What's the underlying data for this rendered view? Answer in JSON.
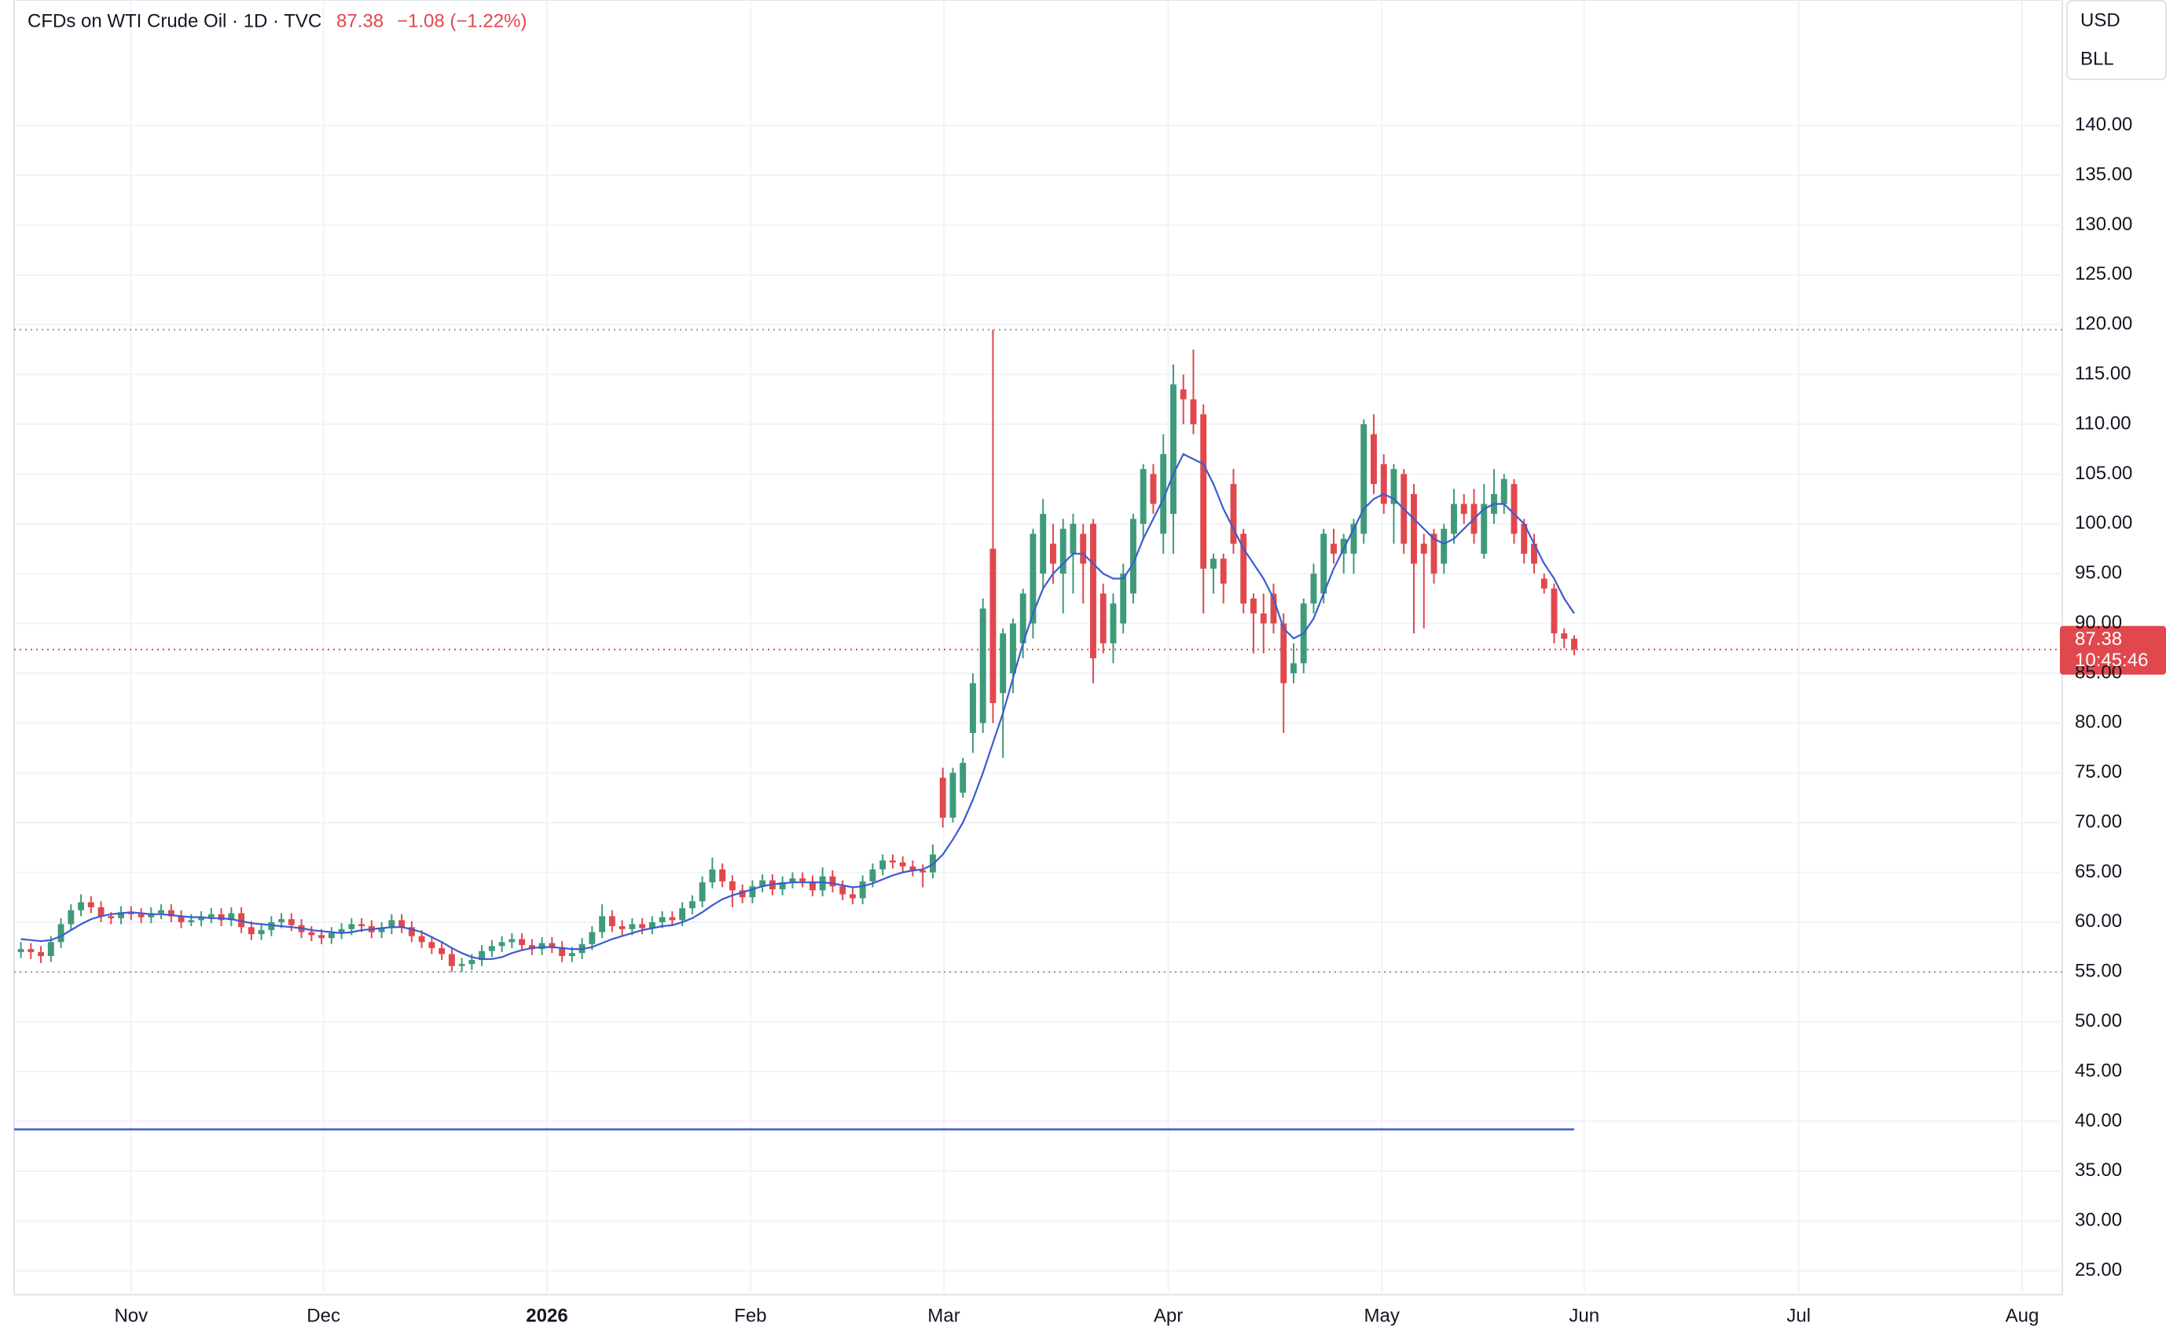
{
  "header": {
    "title": "CFDs on WTI Crude Oil · 1D · TVC",
    "change": "−1.08 (−1.22%)",
    "currency": "USD",
    "unit": "BLL",
    "countdown": "10:45:46"
  },
  "chart_data": {
    "type": "candlestick",
    "up_color": "#3f9a7a",
    "down_color": "#e0484d",
    "ma_color": "#3b5bd1",
    "hline": 39.2,
    "hline_color": "#3b5bd1",
    "grid": true,
    "xlim": [
      -0.67,
      203.7
    ],
    "xticks": [
      {
        "value": 11.0,
        "label": "Nov"
      },
      {
        "value": 30.2,
        "label": "Dec"
      },
      {
        "value": 52.5,
        "label": "2026"
      },
      {
        "value": 72.8,
        "label": "Feb"
      },
      {
        "value": 92.1,
        "label": "Mar"
      },
      {
        "value": 114.5,
        "label": "Apr"
      },
      {
        "value": 135.8,
        "label": "May"
      },
      {
        "value": 156.0,
        "label": "Jun"
      },
      {
        "value": 177.4,
        "label": "Jul"
      },
      {
        "value": 199.7,
        "label": "Aug"
      }
    ],
    "ylim": [
      22.6,
      152.6
    ],
    "yticks": [
      {
        "value": 25,
        "label": "25.00"
      },
      {
        "value": 30,
        "label": "30.00"
      },
      {
        "value": 35,
        "label": "35.00"
      },
      {
        "value": 40,
        "label": "40.00"
      },
      {
        "value": 45,
        "label": "45.00"
      },
      {
        "value": 50,
        "label": "50.00"
      },
      {
        "value": 55,
        "label": "55.00"
      },
      {
        "value": 60,
        "label": "60.00"
      },
      {
        "value": 65,
        "label": "65.00"
      },
      {
        "value": 70,
        "label": "70.00"
      },
      {
        "value": 75,
        "label": "75.00"
      },
      {
        "value": 80,
        "label": "80.00"
      },
      {
        "value": 85,
        "label": "85.00"
      },
      {
        "value": 90,
        "label": "90.00"
      },
      {
        "value": 95,
        "label": "95.00"
      },
      {
        "value": 100,
        "label": "100.00"
      },
      {
        "value": 105,
        "label": "105.00"
      },
      {
        "value": 110,
        "label": "110.00"
      },
      {
        "value": 115,
        "label": "115.00"
      },
      {
        "value": 120,
        "label": "120.00"
      },
      {
        "value": 125,
        "label": "125.00"
      },
      {
        "value": 130,
        "label": "130.00"
      },
      {
        "value": 135,
        "label": "135.00"
      },
      {
        "value": 140,
        "label": "140.00"
      }
    ],
    "open": [
      57.0,
      57.3,
      57.0,
      56.6,
      58.0,
      59.8,
      61.2,
      62.0,
      61.5,
      60.6,
      60.4,
      61.0,
      60.8,
      60.5,
      60.9,
      61.2,
      60.6,
      60.0,
      60.2,
      60.5,
      60.8,
      60.2,
      60.9,
      59.5,
      58.8,
      59.2,
      60.0,
      60.3,
      59.7,
      59.0,
      58.7,
      58.4,
      58.9,
      59.3,
      59.8,
      59.6,
      59.0,
      59.4,
      60.2,
      59.5,
      58.6,
      58.0,
      57.4,
      56.8,
      55.6,
      55.8,
      56.2,
      57.1,
      57.6,
      58.0,
      58.3,
      57.7,
      57.3,
      57.9,
      57.5,
      56.6,
      56.9,
      57.8,
      59.0,
      60.6,
      59.6,
      59.3,
      59.8,
      59.4,
      60.0,
      60.5,
      60.2,
      61.4,
      62.1,
      64.0,
      65.3,
      64.1,
      63.2,
      62.5,
      63.6,
      64.2,
      63.3,
      64.0,
      64.4,
      64.1,
      63.2,
      64.6,
      63.6,
      62.8,
      62.4,
      64.1,
      65.3,
      66.2,
      66.0,
      65.6,
      65.2,
      65.0,
      74.5,
      70.5,
      73.0,
      79.0,
      80.0,
      97.5,
      83.0,
      85.0,
      88.0,
      90.0,
      95.0,
      98.0,
      95.0,
      97.0,
      99.0,
      100.0,
      93.0,
      88.0,
      90.0,
      93.0,
      100.0,
      105.0,
      99.0,
      101.0,
      113.5,
      112.5,
      111.0,
      95.5,
      96.5,
      104.0,
      99.0,
      92.5,
      91.0,
      93.0,
      90.0,
      85.0,
      86.0,
      92.0,
      93.0,
      98.0,
      97.0,
      97.0,
      99.0,
      109.0,
      106.0,
      102.0,
      105.0,
      103.0,
      98.0,
      99.0,
      96.0,
      99.0,
      102.0,
      102.0,
      97.0,
      101.0,
      102.0,
      104.0,
      100.0,
      98.0,
      94.5,
      93.5,
      89.0,
      88.46
    ],
    "high": [
      58.0,
      57.9,
      57.6,
      58.6,
      60.4,
      61.8,
      62.8,
      62.6,
      62.1,
      61.0,
      61.6,
      61.6,
      61.4,
      61.5,
      61.8,
      61.8,
      61.2,
      60.8,
      61.1,
      61.4,
      61.4,
      61.5,
      61.5,
      60.1,
      59.8,
      60.6,
      60.9,
      60.9,
      60.3,
      59.6,
      59.3,
      59.5,
      59.9,
      60.4,
      60.4,
      60.2,
      60.0,
      60.8,
      60.8,
      60.1,
      59.2,
      58.6,
      58.0,
      57.4,
      56.4,
      56.8,
      57.7,
      58.2,
      58.6,
      58.9,
      58.9,
      58.3,
      58.5,
      58.5,
      58.1,
      57.5,
      58.4,
      59.6,
      61.8,
      61.2,
      60.2,
      60.4,
      60.4,
      60.6,
      61.1,
      61.1,
      62.0,
      62.7,
      64.6,
      66.5,
      65.9,
      64.7,
      63.8,
      64.2,
      64.8,
      64.8,
      64.6,
      65.0,
      65.0,
      64.7,
      65.5,
      65.2,
      64.2,
      63.4,
      64.7,
      65.9,
      66.8,
      66.8,
      66.6,
      66.2,
      65.8,
      67.8,
      75.5,
      75.5,
      76.5,
      85.0,
      92.5,
      119.5,
      89.5,
      90.5,
      93.5,
      99.5,
      102.5,
      100.0,
      100.5,
      101.0,
      100.0,
      100.5,
      94.0,
      93.0,
      96.0,
      101.0,
      106.0,
      106.0,
      109.0,
      116.0,
      115.0,
      117.5,
      112.0,
      97.0,
      97.0,
      105.5,
      99.5,
      93.0,
      93.0,
      94.0,
      91.0,
      88.0,
      92.5,
      96.0,
      99.5,
      99.5,
      99.0,
      100.5,
      110.5,
      111.0,
      107.0,
      106.0,
      105.5,
      104.0,
      99.0,
      99.5,
      100.0,
      103.5,
      103.0,
      103.5,
      104.0,
      105.5,
      105.0,
      104.5,
      100.5,
      99.0,
      95.0,
      94.0,
      89.5,
      88.8
    ],
    "low": [
      56.4,
      56.3,
      55.9,
      56.0,
      57.4,
      59.2,
      60.6,
      60.9,
      60.0,
      59.8,
      59.8,
      60.2,
      59.9,
      59.9,
      60.3,
      60.0,
      59.4,
      59.6,
      59.6,
      59.9,
      59.6,
      59.6,
      58.9,
      58.2,
      58.2,
      58.6,
      59.4,
      59.1,
      58.4,
      58.1,
      57.8,
      57.8,
      58.3,
      58.7,
      59.0,
      58.4,
      58.4,
      58.8,
      58.9,
      58.0,
      57.4,
      56.8,
      56.2,
      55.0,
      55.0,
      55.2,
      55.6,
      56.5,
      57.0,
      57.4,
      57.1,
      56.7,
      56.7,
      56.9,
      56.0,
      56.0,
      56.3,
      57.2,
      58.4,
      59.0,
      58.7,
      58.7,
      58.8,
      58.8,
      59.4,
      59.6,
      59.6,
      60.8,
      61.5,
      63.4,
      63.5,
      61.5,
      61.9,
      61.9,
      63.0,
      62.7,
      62.7,
      63.4,
      63.5,
      62.6,
      62.6,
      63.0,
      62.2,
      61.8,
      61.8,
      63.5,
      64.7,
      65.4,
      65.0,
      64.6,
      63.5,
      64.4,
      69.5,
      70.0,
      72.5,
      77.0,
      79.0,
      80.0,
      76.5,
      83.0,
      86.5,
      88.5,
      93.5,
      94.0,
      91.0,
      93.0,
      92.0,
      84.0,
      87.0,
      86.0,
      89.0,
      92.0,
      98.5,
      101.0,
      97.0,
      97.0,
      110.0,
      109.0,
      91.0,
      93.0,
      92.0,
      97.0,
      91.0,
      87.0,
      87.0,
      89.0,
      79.0,
      84.0,
      85.0,
      91.0,
      92.0,
      96.0,
      95.0,
      95.0,
      98.0,
      103.0,
      101.0,
      98.0,
      97.0,
      89.0,
      89.5,
      94.0,
      95.0,
      98.0,
      100.0,
      98.0,
      96.5,
      100.0,
      101.0,
      98.0,
      96.0,
      95.0,
      93.0,
      88.0,
      87.5,
      86.8
    ],
    "close": [
      57.3,
      57.0,
      56.6,
      58.0,
      59.8,
      61.2,
      62.0,
      61.5,
      60.6,
      60.4,
      61.0,
      60.8,
      60.5,
      60.9,
      61.2,
      60.6,
      60.0,
      60.2,
      60.5,
      60.8,
      60.2,
      60.9,
      59.5,
      58.8,
      59.2,
      60.0,
      60.3,
      59.7,
      59.0,
      58.7,
      58.4,
      58.9,
      59.3,
      59.8,
      59.6,
      59.0,
      59.4,
      60.2,
      59.5,
      58.6,
      58.0,
      57.4,
      56.8,
      55.6,
      55.8,
      56.2,
      57.1,
      57.6,
      58.0,
      58.3,
      57.7,
      57.3,
      57.9,
      57.5,
      56.6,
      56.9,
      57.8,
      59.0,
      60.6,
      59.6,
      59.3,
      59.8,
      59.4,
      60.0,
      60.5,
      60.2,
      61.4,
      62.1,
      64.0,
      65.3,
      64.1,
      63.2,
      62.5,
      63.6,
      64.2,
      63.3,
      64.0,
      64.4,
      64.1,
      63.2,
      64.6,
      63.6,
      62.8,
      62.4,
      64.1,
      65.3,
      66.2,
      66.0,
      65.6,
      65.2,
      65.0,
      66.8,
      70.5,
      75.0,
      76.0,
      84.0,
      91.5,
      82.0,
      89.0,
      90.0,
      93.0,
      99.0,
      101.0,
      96.0,
      99.5,
      100.0,
      96.0,
      86.5,
      88.0,
      92.0,
      95.0,
      100.5,
      105.5,
      102.0,
      107.0,
      114.0,
      112.5,
      110.0,
      95.5,
      96.5,
      94.0,
      98.0,
      92.0,
      91.0,
      90.0,
      90.0,
      84.0,
      86.0,
      92.0,
      95.0,
      99.0,
      97.0,
      98.5,
      100.0,
      110.0,
      104.0,
      102.0,
      105.5,
      98.0,
      96.0,
      97.0,
      95.0,
      99.5,
      102.0,
      101.0,
      99.0,
      102.0,
      103.0,
      104.5,
      99.0,
      97.0,
      96.0,
      93.5,
      89.0,
      88.46,
      87.38
    ],
    "ma": [
      58.3,
      58.2,
      58.1,
      58.2,
      58.6,
      59.2,
      59.8,
      60.3,
      60.6,
      60.8,
      60.9,
      61.0,
      60.9,
      60.8,
      60.8,
      60.7,
      60.6,
      60.5,
      60.5,
      60.4,
      60.4,
      60.3,
      60.1,
      59.9,
      59.8,
      59.7,
      59.6,
      59.5,
      59.4,
      59.2,
      59.1,
      59.0,
      58.9,
      59.0,
      59.2,
      59.3,
      59.4,
      59.5,
      59.5,
      59.3,
      59.0,
      58.5,
      58.0,
      57.4,
      56.9,
      56.5,
      56.3,
      56.3,
      56.5,
      56.9,
      57.2,
      57.4,
      57.5,
      57.5,
      57.4,
      57.3,
      57.3,
      57.5,
      57.9,
      58.3,
      58.6,
      58.9,
      59.2,
      59.4,
      59.6,
      59.7,
      60.0,
      60.4,
      61.0,
      61.7,
      62.3,
      62.7,
      63.0,
      63.3,
      63.6,
      63.8,
      63.9,
      64.0,
      64.0,
      64.0,
      64.0,
      63.9,
      63.7,
      63.5,
      63.6,
      63.9,
      64.3,
      64.7,
      65.0,
      65.2,
      65.3,
      65.8,
      66.8,
      68.3,
      70.0,
      72.3,
      75.0,
      78.0,
      81.0,
      84.5,
      88.0,
      91.0,
      93.5,
      95.0,
      96.0,
      97.0,
      97.0,
      96.0,
      95.0,
      94.5,
      94.5,
      96.0,
      98.5,
      100.5,
      102.5,
      105.0,
      107.0,
      106.5,
      106.0,
      104.0,
      101.5,
      99.5,
      97.5,
      96.0,
      94.5,
      92.5,
      89.5,
      88.5,
      89.0,
      90.5,
      93.0,
      95.5,
      97.5,
      99.5,
      101.5,
      102.5,
      103.0,
      102.5,
      101.5,
      100.5,
      99.5,
      98.5,
      98.0,
      98.5,
      99.5,
      100.5,
      101.5,
      102.0,
      102.0,
      101.0,
      100.0,
      98.0,
      96.0,
      94.5,
      92.5,
      91.0
    ]
  }
}
